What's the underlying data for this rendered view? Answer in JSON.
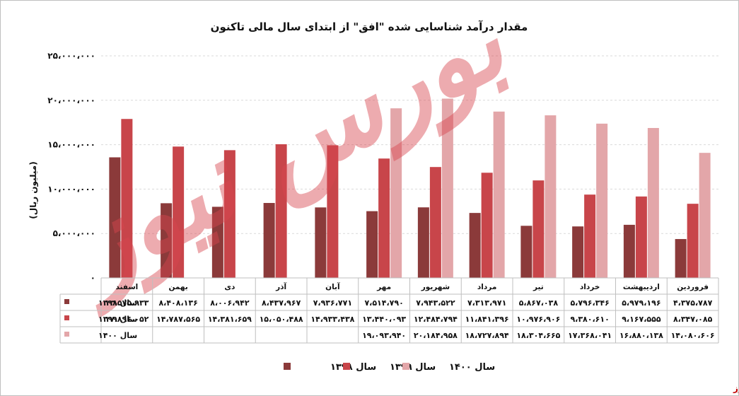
{
  "chart_data": {
    "type": "bar",
    "title": "مقدار درآمد شناسایی شده \"افق\" از ابتدای سال مالی تاکنون",
    "ylabel": "(میلیون ریال)",
    "ylim": [
      0,
      25000000
    ],
    "yticks": [
      0,
      5000000,
      10000000,
      15000000,
      20000000,
      25000000
    ],
    "ytick_labels": [
      "۰",
      "۵،۰۰۰،۰۰۰",
      "۱۰،۰۰۰،۰۰۰",
      "۱۵،۰۰۰،۰۰۰",
      "۲۰،۰۰۰،۰۰۰",
      "۲۵،۰۰۰،۰۰۰"
    ],
    "grid": true,
    "legend_position": "bottom",
    "categories": [
      "فروردین",
      "اردیبهشت",
      "خرداد",
      "تیر",
      "مرداد",
      "شهریور",
      "مهر",
      "آبان",
      "آذر",
      "دی",
      "بهمن",
      "اسفند"
    ],
    "series": [
      {
        "name": "سال ۱۳۹۸",
        "color": "#8b3a3a",
        "values": [
          4375787,
          5979196,
          5796346,
          5867038,
          7313971,
          7943522,
          7514790,
          7936771,
          8437967,
          8006942,
          8408136,
          13575933
        ],
        "labels": [
          "۴،۳۷۵،۷۸۷",
          "۵،۹۷۹،۱۹۶",
          "۵،۷۹۶،۳۴۶",
          "۵،۸۶۷،۰۳۸",
          "۷،۳۱۳،۹۷۱",
          "۷،۹۴۳،۵۲۲",
          "۷،۵۱۴،۷۹۰",
          "۷،۹۳۶،۷۷۱",
          "۸،۴۳۷،۹۶۷",
          "۸،۰۰۶،۹۴۲",
          "۸،۴۰۸،۱۳۶",
          "۱۳،۵۷۵،۹۳۳"
        ]
      },
      {
        "name": "سال ۱۳۹۹",
        "color": "#c8454a",
        "values": [
          8347085,
          9167555,
          9380610,
          10976906,
          11841396,
          12484794,
          13440093,
          14933438,
          15050488,
          14381659,
          14787565,
          17896052
        ],
        "labels": [
          "۸،۳۴۷،۰۸۵",
          "۹،۱۶۷،۵۵۵",
          "۹،۳۸۰،۶۱۰",
          "۱۰،۹۷۶،۹۰۶",
          "۱۱،۸۴۱،۳۹۶",
          "۱۲،۴۸۴،۷۹۴",
          "۱۳،۴۴۰،۰۹۳",
          "۱۴،۹۳۳،۴۳۸",
          "۱۵،۰۵۰،۴۸۸",
          "۱۴،۳۸۱،۶۵۹",
          "۱۴،۷۸۷،۵۶۵",
          "۱۷،۸۹۶،۰۵۲"
        ]
      },
      {
        "name": "سال ۱۴۰۰",
        "color": "#e3a6a9",
        "values": [
          14080606,
          16880138,
          17368041,
          18304665,
          18727894,
          20184958,
          19093940,
          null,
          null,
          null,
          null,
          null
        ],
        "labels": [
          "۱۴،۰۸۰،۶۰۶",
          "۱۶،۸۸۰،۱۳۸",
          "۱۷،۳۶۸،۰۴۱",
          "۱۸،۳۰۴،۶۶۵",
          "۱۸،۷۲۷،۸۹۴",
          "۲۰،۱۸۴،۹۵۸",
          "۱۹،۰۹۳،۹۴۰",
          "",
          "",
          "",
          "",
          ""
        ]
      }
    ]
  },
  "watermark": "بورس نیوز",
  "source": "بورس نیوز"
}
